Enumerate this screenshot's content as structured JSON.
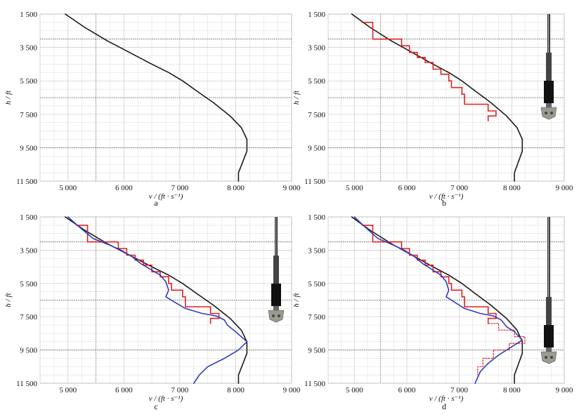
{
  "chart_data": [
    {
      "type": "line",
      "panel_label": "a",
      "ylabel": "h / ft",
      "xlabel": "v / (ft · s⁻¹)",
      "xlim": [
        4500,
        9000
      ],
      "ylim": [
        1500,
        11500
      ],
      "y_inverted": true,
      "grid": true,
      "xticks": [
        "5 000",
        "6 000",
        "7 000",
        "8 000",
        "9 000"
      ],
      "yticks": [
        "1 500",
        "3 500",
        "5 500",
        "7 500",
        "9 500",
        "11 500"
      ],
      "series": [
        {
          "color": "#1a1a1a",
          "style": "solid",
          "points": [
            [
              4950,
              1500
            ],
            [
              5300,
              2300
            ],
            [
              5700,
              3100
            ],
            [
              6100,
              3800
            ],
            [
              6500,
              4500
            ],
            [
              6800,
              5000
            ],
            [
              7050,
              5500
            ],
            [
              7300,
              6100
            ],
            [
              7600,
              6800
            ],
            [
              7900,
              7600
            ],
            [
              8100,
              8300
            ],
            [
              8200,
              9000
            ],
            [
              8200,
              9700
            ],
            [
              8120,
              10400
            ],
            [
              8050,
              11000
            ],
            [
              8050,
              11500
            ]
          ]
        }
      ],
      "show_tool": false
    },
    {
      "type": "line",
      "panel_label": "b",
      "ylabel": "h / ft",
      "xlabel": "v / (ft · s⁻¹)",
      "xlim": [
        4500,
        9000
      ],
      "ylim": [
        1500,
        11500
      ],
      "y_inverted": true,
      "grid": true,
      "xticks": [
        "5 000",
        "6 000",
        "7 000",
        "8 000",
        "9 000"
      ],
      "yticks": [
        "1 500",
        "3 500",
        "5 500",
        "7 500",
        "9 500",
        "11 500"
      ],
      "series": [
        {
          "color": "#1a1a1a",
          "style": "solid",
          "points": [
            [
              4950,
              1500
            ],
            [
              5300,
              2300
            ],
            [
              5700,
              3100
            ],
            [
              6100,
              3800
            ],
            [
              6500,
              4500
            ],
            [
              6800,
              5000
            ],
            [
              7050,
              5500
            ],
            [
              7300,
              6100
            ],
            [
              7600,
              6800
            ],
            [
              7900,
              7600
            ],
            [
              8100,
              8300
            ],
            [
              8200,
              9000
            ],
            [
              8200,
              9700
            ],
            [
              8120,
              10400
            ],
            [
              8050,
              11000
            ],
            [
              8050,
              11500
            ]
          ]
        },
        {
          "color": "#e32020",
          "style": "step",
          "points": [
            [
              5150,
              2000
            ],
            [
              5350,
              2000
            ],
            [
              5350,
              3000
            ],
            [
              5900,
              3000
            ],
            [
              5900,
              3400
            ],
            [
              6050,
              3400
            ],
            [
              6050,
              3800
            ],
            [
              6200,
              3800
            ],
            [
              6200,
              4100
            ],
            [
              6350,
              4100
            ],
            [
              6350,
              4400
            ],
            [
              6500,
              4400
            ],
            [
              6500,
              4800
            ],
            [
              6650,
              4800
            ],
            [
              6650,
              5100
            ],
            [
              6800,
              5100
            ],
            [
              6800,
              5500
            ],
            [
              6850,
              5500
            ],
            [
              6850,
              5900
            ],
            [
              7050,
              5900
            ],
            [
              7050,
              6300
            ],
            [
              7100,
              6300
            ],
            [
              7100,
              6900
            ],
            [
              7550,
              6900
            ],
            [
              7550,
              7300
            ],
            [
              7700,
              7300
            ],
            [
              7700,
              7600
            ],
            [
              7550,
              7600
            ],
            [
              7550,
              7900
            ]
          ]
        }
      ],
      "show_tool": true
    },
    {
      "type": "line",
      "panel_label": "c",
      "ylabel": "h / ft",
      "xlabel": "v / (ft · s⁻¹)",
      "xlim": [
        4500,
        9000
      ],
      "ylim": [
        1500,
        11500
      ],
      "y_inverted": true,
      "grid": true,
      "xticks": [
        "5 000",
        "6 000",
        "7 000",
        "8 000",
        "9 000"
      ],
      "yticks": [
        "1 500",
        "3 500",
        "5 500",
        "7 500",
        "9 500",
        "11 500"
      ],
      "series": [
        {
          "color": "#1a1a1a",
          "style": "solid",
          "points": [
            [
              4950,
              1500
            ],
            [
              5300,
              2300
            ],
            [
              5700,
              3100
            ],
            [
              6100,
              3800
            ],
            [
              6500,
              4500
            ],
            [
              6800,
              5000
            ],
            [
              7050,
              5500
            ],
            [
              7300,
              6100
            ],
            [
              7600,
              6800
            ],
            [
              7900,
              7600
            ],
            [
              8100,
              8300
            ],
            [
              8200,
              9000
            ],
            [
              8200,
              9700
            ],
            [
              8120,
              10400
            ],
            [
              8050,
              11000
            ],
            [
              8050,
              11500
            ]
          ]
        },
        {
          "color": "#e32020",
          "style": "step",
          "points": [
            [
              5150,
              2000
            ],
            [
              5350,
              2000
            ],
            [
              5350,
              3000
            ],
            [
              5900,
              3000
            ],
            [
              5900,
              3400
            ],
            [
              6050,
              3400
            ],
            [
              6050,
              3800
            ],
            [
              6200,
              3800
            ],
            [
              6200,
              4100
            ],
            [
              6350,
              4100
            ],
            [
              6350,
              4400
            ],
            [
              6500,
              4400
            ],
            [
              6500,
              4800
            ],
            [
              6650,
              4800
            ],
            [
              6650,
              5100
            ],
            [
              6800,
              5100
            ],
            [
              6800,
              5500
            ],
            [
              6850,
              5500
            ],
            [
              6850,
              5900
            ],
            [
              7050,
              5900
            ],
            [
              7050,
              6300
            ],
            [
              7100,
              6300
            ],
            [
              7100,
              6900
            ],
            [
              7550,
              6900
            ],
            [
              7550,
              7300
            ],
            [
              7700,
              7300
            ],
            [
              7700,
              7600
            ],
            [
              7550,
              7600
            ],
            [
              7550,
              7900
            ]
          ]
        },
        {
          "color": "#2b3fbf",
          "style": "solid",
          "points": [
            [
              5000,
              1500
            ],
            [
              5200,
              2100
            ],
            [
              5450,
              2800
            ],
            [
              5750,
              3200
            ],
            [
              5950,
              3500
            ],
            [
              6150,
              3900
            ],
            [
              6300,
              4300
            ],
            [
              6500,
              4700
            ],
            [
              6650,
              5000
            ],
            [
              6750,
              5400
            ],
            [
              6800,
              5900
            ],
            [
              6750,
              6300
            ],
            [
              6900,
              6600
            ],
            [
              7100,
              7000
            ],
            [
              7400,
              7300
            ],
            [
              7650,
              7450
            ],
            [
              7800,
              7700
            ],
            [
              7850,
              8000
            ],
            [
              8000,
              8400
            ],
            [
              8200,
              9000
            ],
            [
              8050,
              9500
            ],
            [
              7800,
              10000
            ],
            [
              7500,
              10500
            ],
            [
              7350,
              11000
            ],
            [
              7250,
              11500
            ]
          ]
        }
      ],
      "show_tool": true
    },
    {
      "type": "line",
      "panel_label": "d",
      "ylabel": "h / ft",
      "xlabel": "v / (ft · s⁻¹)",
      "xlim": [
        4500,
        9000
      ],
      "ylim": [
        1500,
        11500
      ],
      "y_inverted": true,
      "grid": true,
      "xticks": [
        "5 000",
        "6 000",
        "7 000",
        "8 000",
        "9 000"
      ],
      "yticks": [
        "1 500",
        "3 500",
        "5 500",
        "7 500",
        "9 500",
        "11 500"
      ],
      "series": [
        {
          "color": "#1a1a1a",
          "style": "solid",
          "points": [
            [
              4950,
              1500
            ],
            [
              5300,
              2300
            ],
            [
              5700,
              3100
            ],
            [
              6100,
              3800
            ],
            [
              6500,
              4500
            ],
            [
              6800,
              5000
            ],
            [
              7050,
              5500
            ],
            [
              7300,
              6100
            ],
            [
              7600,
              6800
            ],
            [
              7900,
              7600
            ],
            [
              8100,
              8300
            ],
            [
              8200,
              9000
            ],
            [
              8200,
              9700
            ],
            [
              8120,
              10400
            ],
            [
              8050,
              11000
            ],
            [
              8050,
              11500
            ]
          ]
        },
        {
          "color": "#e32020",
          "style": "step",
          "points": [
            [
              5150,
              2000
            ],
            [
              5350,
              2000
            ],
            [
              5350,
              3000
            ],
            [
              5900,
              3000
            ],
            [
              5900,
              3400
            ],
            [
              6050,
              3400
            ],
            [
              6050,
              3800
            ],
            [
              6200,
              3800
            ],
            [
              6200,
              4100
            ],
            [
              6350,
              4100
            ],
            [
              6350,
              4400
            ],
            [
              6500,
              4400
            ],
            [
              6500,
              4800
            ],
            [
              6650,
              4800
            ],
            [
              6650,
              5100
            ],
            [
              6800,
              5100
            ],
            [
              6800,
              5500
            ],
            [
              6850,
              5500
            ],
            [
              6850,
              5900
            ],
            [
              7050,
              5900
            ],
            [
              7050,
              6300
            ],
            [
              7100,
              6300
            ],
            [
              7100,
              6900
            ],
            [
              7550,
              6900
            ],
            [
              7550,
              7300
            ],
            [
              7700,
              7300
            ],
            [
              7700,
              7600
            ],
            [
              7550,
              7600
            ],
            [
              7550,
              7900
            ]
          ]
        },
        {
          "color": "#e32020",
          "style": "dotted",
          "points": [
            [
              7550,
              7900
            ],
            [
              7750,
              7900
            ],
            [
              7750,
              8300
            ],
            [
              8050,
              8300
            ],
            [
              8050,
              8700
            ],
            [
              8250,
              8700
            ],
            [
              8250,
              9100
            ],
            [
              7950,
              9100
            ],
            [
              7950,
              9500
            ],
            [
              7650,
              9500
            ],
            [
              7650,
              10000
            ],
            [
              7450,
              10000
            ],
            [
              7450,
              10500
            ],
            [
              7350,
              10500
            ],
            [
              7350,
              11000
            ]
          ]
        },
        {
          "color": "#2b3fbf",
          "style": "solid",
          "points": [
            [
              5000,
              1500
            ],
            [
              5200,
              2100
            ],
            [
              5450,
              2800
            ],
            [
              5750,
              3200
            ],
            [
              5950,
              3500
            ],
            [
              6150,
              3900
            ],
            [
              6300,
              4300
            ],
            [
              6500,
              4700
            ],
            [
              6650,
              5000
            ],
            [
              6750,
              5400
            ],
            [
              6800,
              5900
            ],
            [
              6750,
              6300
            ],
            [
              6900,
              6600
            ],
            [
              7100,
              7000
            ],
            [
              7400,
              7300
            ],
            [
              7650,
              7450
            ],
            [
              7800,
              7700
            ],
            [
              7900,
              8100
            ],
            [
              8050,
              8400
            ],
            [
              8200,
              8900
            ],
            [
              8000,
              9300
            ],
            [
              7750,
              9800
            ],
            [
              7550,
              10300
            ],
            [
              7400,
              10800
            ],
            [
              7300,
              11500
            ]
          ]
        }
      ],
      "show_tool": true
    }
  ]
}
